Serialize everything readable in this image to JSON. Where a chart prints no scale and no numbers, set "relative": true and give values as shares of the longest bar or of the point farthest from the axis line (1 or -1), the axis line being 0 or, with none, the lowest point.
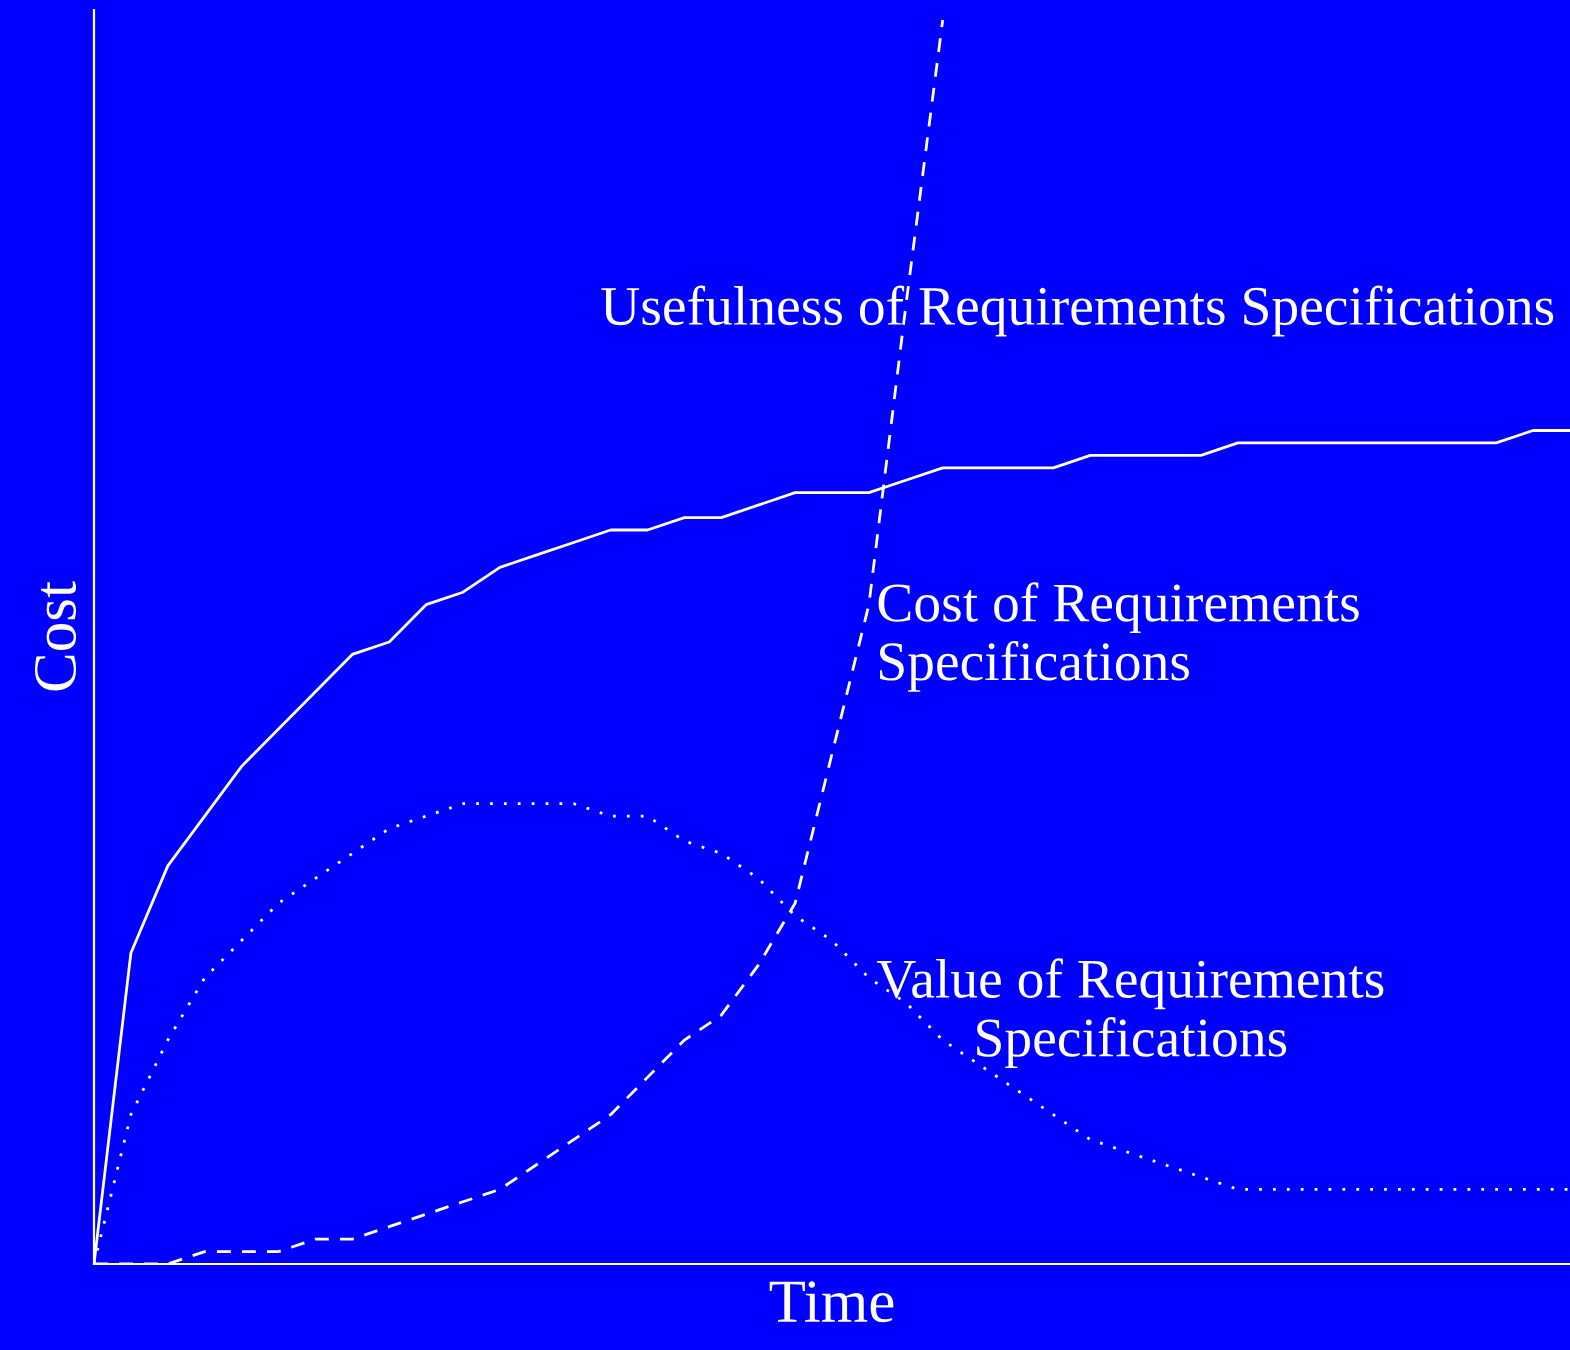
{
  "chart_data": {
    "type": "line",
    "relative": true,
    "xlabel": "Time",
    "ylabel": "Cost",
    "grid": false,
    "legend": false,
    "marker": "none",
    "categories": [
      null,
      null,
      null,
      null,
      null,
      null,
      null,
      null,
      null,
      null,
      null,
      null,
      null,
      null,
      null,
      null,
      null,
      null,
      null,
      null,
      null,
      null,
      null,
      null,
      null,
      null,
      null,
      null,
      null,
      null,
      null,
      null,
      null,
      null,
      null,
      null,
      null,
      null,
      null,
      null,
      null
    ],
    "series": [
      {
        "name": "Usefulness of Requirements Specifications",
        "color": "#ffffff",
        "line_style": "solid",
        "values": [
          0,
          0.25,
          0.32,
          0.36,
          0.4,
          0.43,
          0.46,
          0.49,
          0.5,
          0.53,
          0.54,
          0.56,
          0.57,
          0.58,
          0.59,
          0.59,
          0.6,
          0.6,
          0.61,
          0.62,
          0.62,
          0.62,
          0.63,
          0.64,
          0.64,
          0.64,
          0.64,
          0.65,
          0.65,
          0.65,
          0.65,
          0.66,
          0.66,
          0.66,
          0.66,
          0.66,
          0.66,
          0.66,
          0.66,
          0.67,
          0.67
        ]
      },
      {
        "name": "Cost of Requirements\nSpecifications",
        "color": "#ffffff",
        "line_style": "dashed",
        "values": [
          0,
          0.0,
          0.0,
          0.01,
          0.01,
          0.01,
          0.02,
          0.02,
          0.03,
          0.04,
          0.05,
          0.06,
          0.08,
          0.1,
          0.12,
          0.15,
          0.18,
          0.2,
          0.24,
          0.29,
          0.41,
          0.53,
          0.77,
          1.0,
          null,
          null,
          null,
          null,
          null,
          null,
          null,
          null,
          null,
          null,
          null,
          null,
          null,
          null,
          null,
          null,
          null
        ]
      },
      {
        "name": "Value of Requirements\nSpecifications",
        "color": "#ffffff",
        "line_style": "dotted",
        "values": [
          0,
          0.12,
          0.18,
          0.23,
          0.26,
          0.29,
          0.31,
          0.33,
          0.35,
          0.36,
          0.37,
          0.37,
          0.37,
          0.37,
          0.36,
          0.36,
          0.34,
          0.33,
          0.31,
          0.28,
          0.26,
          0.23,
          0.21,
          0.18,
          0.16,
          0.14,
          0.12,
          0.1,
          0.09,
          0.08,
          0.07,
          0.06,
          0.06,
          0.06,
          0.06,
          0.06,
          0.06,
          0.06,
          0.06,
          0.06,
          0.06
        ]
      }
    ]
  }
}
